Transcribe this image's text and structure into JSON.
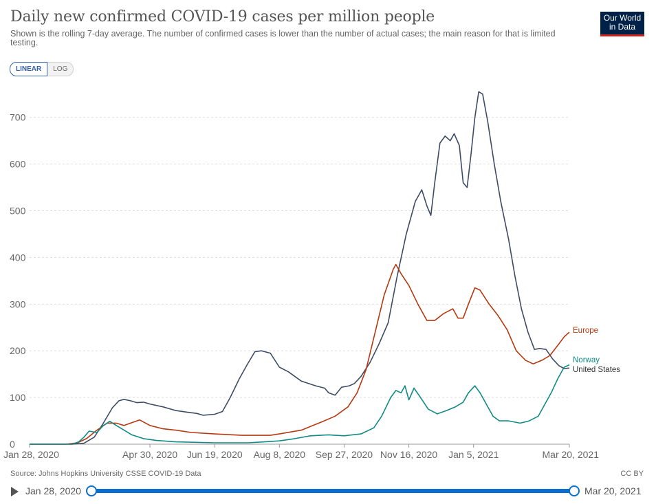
{
  "header": {
    "title": "Daily new confirmed COVID-19 cases per million people",
    "subtitle": "Shown is the rolling 7-day average. The number of confirmed cases is lower than the number of actual cases; the main reason for that is limited testing.",
    "logo_line1": "Our World",
    "logo_line2": "in Data"
  },
  "scale_toggle": {
    "linear": "LINEAR",
    "log": "LOG",
    "active": "LINEAR"
  },
  "footer": {
    "source": "Source: Johns Hopkins University CSSE COVID-19 Data",
    "license": "CC BY"
  },
  "timeline": {
    "start": "Jan 28, 2020",
    "end": "Mar 20, 2021"
  },
  "colors": {
    "united_states": "#3d4b66",
    "europe": "#b5380f",
    "norway": "#0f8a84",
    "grid": "#dddddd",
    "axis": "#555555"
  },
  "chart_data": {
    "type": "line",
    "title": "Daily new confirmed COVID-19 cases per million people",
    "ylim": [
      0,
      760
    ],
    "yticks": [
      0,
      100,
      200,
      300,
      400,
      500,
      600,
      700
    ],
    "xlim": [
      "2020-01-28",
      "2021-03-20"
    ],
    "xticks": [
      {
        "date": "2020-01-28",
        "label": "Jan 28, 2020"
      },
      {
        "date": "2020-04-30",
        "label": "Apr 30, 2020"
      },
      {
        "date": "2020-06-19",
        "label": "Jun 19, 2020"
      },
      {
        "date": "2020-08-08",
        "label": "Aug 8, 2020"
      },
      {
        "date": "2020-09-27",
        "label": "Sep 27, 2020"
      },
      {
        "date": "2020-11-16",
        "label": "Nov 16, 2020"
      },
      {
        "date": "2021-01-05",
        "label": "Jan 5, 2021"
      },
      {
        "date": "2021-03-20",
        "label": "Mar 20, 2021"
      }
    ],
    "grid": true,
    "series": [
      {
        "name": "United States",
        "color": "#3d4b66",
        "points": [
          [
            "2020-01-28",
            0
          ],
          [
            "2020-03-01",
            0
          ],
          [
            "2020-03-10",
            2
          ],
          [
            "2020-03-18",
            15
          ],
          [
            "2020-03-25",
            45
          ],
          [
            "2020-04-01",
            78
          ],
          [
            "2020-04-06",
            93
          ],
          [
            "2020-04-10",
            96
          ],
          [
            "2020-04-15",
            93
          ],
          [
            "2020-04-20",
            89
          ],
          [
            "2020-04-25",
            90
          ],
          [
            "2020-04-30",
            86
          ],
          [
            "2020-05-10",
            80
          ],
          [
            "2020-05-20",
            72
          ],
          [
            "2020-05-30",
            68
          ],
          [
            "2020-06-05",
            66
          ],
          [
            "2020-06-10",
            62
          ],
          [
            "2020-06-19",
            64
          ],
          [
            "2020-06-25",
            70
          ],
          [
            "2020-07-01",
            100
          ],
          [
            "2020-07-08",
            140
          ],
          [
            "2020-07-14",
            170
          ],
          [
            "2020-07-20",
            198
          ],
          [
            "2020-07-25",
            200
          ],
          [
            "2020-08-01",
            195
          ],
          [
            "2020-08-08",
            165
          ],
          [
            "2020-08-15",
            155
          ],
          [
            "2020-08-25",
            135
          ],
          [
            "2020-09-05",
            125
          ],
          [
            "2020-09-12",
            120
          ],
          [
            "2020-09-15",
            110
          ],
          [
            "2020-09-20",
            105
          ],
          [
            "2020-09-25",
            122
          ],
          [
            "2020-10-01",
            125
          ],
          [
            "2020-10-05",
            130
          ],
          [
            "2020-10-10",
            145
          ],
          [
            "2020-10-17",
            175
          ],
          [
            "2020-10-24",
            215
          ],
          [
            "2020-10-31",
            260
          ],
          [
            "2020-11-07",
            360
          ],
          [
            "2020-11-14",
            450
          ],
          [
            "2020-11-21",
            520
          ],
          [
            "2020-11-26",
            545
          ],
          [
            "2020-11-30",
            510
          ],
          [
            "2020-12-03",
            490
          ],
          [
            "2020-12-06",
            560
          ],
          [
            "2020-12-10",
            645
          ],
          [
            "2020-12-14",
            660
          ],
          [
            "2020-12-18",
            650
          ],
          [
            "2020-12-21",
            665
          ],
          [
            "2020-12-25",
            640
          ],
          [
            "2020-12-28",
            560
          ],
          [
            "2020-12-31",
            550
          ],
          [
            "2021-01-03",
            620
          ],
          [
            "2021-01-06",
            700
          ],
          [
            "2021-01-09",
            755
          ],
          [
            "2021-01-12",
            750
          ],
          [
            "2021-01-16",
            690
          ],
          [
            "2021-01-21",
            600
          ],
          [
            "2021-01-26",
            520
          ],
          [
            "2021-02-01",
            440
          ],
          [
            "2021-02-06",
            360
          ],
          [
            "2021-02-11",
            290
          ],
          [
            "2021-02-16",
            240
          ],
          [
            "2021-02-21",
            203
          ],
          [
            "2021-02-25",
            205
          ],
          [
            "2021-03-02",
            203
          ],
          [
            "2021-03-07",
            183
          ],
          [
            "2021-03-12",
            168
          ],
          [
            "2021-03-16",
            162
          ],
          [
            "2021-03-20",
            163
          ]
        ]
      },
      {
        "name": "Europe",
        "color": "#b5380f",
        "points": [
          [
            "2020-01-28",
            0
          ],
          [
            "2020-02-25",
            0
          ],
          [
            "2020-03-05",
            3
          ],
          [
            "2020-03-12",
            12
          ],
          [
            "2020-03-20",
            30
          ],
          [
            "2020-03-28",
            45
          ],
          [
            "2020-04-04",
            45
          ],
          [
            "2020-04-10",
            40
          ],
          [
            "2020-04-15",
            45
          ],
          [
            "2020-04-22",
            52
          ],
          [
            "2020-04-30",
            40
          ],
          [
            "2020-05-10",
            33
          ],
          [
            "2020-05-20",
            30
          ],
          [
            "2020-06-01",
            25
          ],
          [
            "2020-06-19",
            22
          ],
          [
            "2020-07-10",
            19
          ],
          [
            "2020-08-01",
            19
          ],
          [
            "2020-08-08",
            22
          ],
          [
            "2020-08-25",
            30
          ],
          [
            "2020-09-10",
            48
          ],
          [
            "2020-09-20",
            60
          ],
          [
            "2020-09-30",
            80
          ],
          [
            "2020-10-07",
            110
          ],
          [
            "2020-10-14",
            160
          ],
          [
            "2020-10-21",
            240
          ],
          [
            "2020-10-28",
            320
          ],
          [
            "2020-11-04",
            375
          ],
          [
            "2020-11-06",
            385
          ],
          [
            "2020-11-10",
            365
          ],
          [
            "2020-11-16",
            340
          ],
          [
            "2020-11-23",
            300
          ],
          [
            "2020-11-30",
            265
          ],
          [
            "2020-12-06",
            265
          ],
          [
            "2020-12-13",
            280
          ],
          [
            "2020-12-20",
            290
          ],
          [
            "2020-12-24",
            270
          ],
          [
            "2020-12-28",
            270
          ],
          [
            "2021-01-01",
            300
          ],
          [
            "2021-01-06",
            335
          ],
          [
            "2021-01-10",
            330
          ],
          [
            "2021-01-17",
            300
          ],
          [
            "2021-01-24",
            275
          ],
          [
            "2021-01-31",
            245
          ],
          [
            "2021-02-07",
            200
          ],
          [
            "2021-02-14",
            180
          ],
          [
            "2021-02-20",
            172
          ],
          [
            "2021-02-27",
            180
          ],
          [
            "2021-03-05",
            190
          ],
          [
            "2021-03-12",
            215
          ],
          [
            "2021-03-16",
            230
          ],
          [
            "2021-03-20",
            240
          ]
        ]
      },
      {
        "name": "Norway",
        "color": "#0f8a84",
        "points": [
          [
            "2020-01-28",
            0
          ],
          [
            "2020-03-01",
            0
          ],
          [
            "2020-03-06",
            5
          ],
          [
            "2020-03-10",
            15
          ],
          [
            "2020-03-14",
            28
          ],
          [
            "2020-03-20",
            25
          ],
          [
            "2020-03-25",
            40
          ],
          [
            "2020-03-30",
            49
          ],
          [
            "2020-04-04",
            40
          ],
          [
            "2020-04-10",
            30
          ],
          [
            "2020-04-16",
            20
          ],
          [
            "2020-04-25",
            12
          ],
          [
            "2020-05-05",
            8
          ],
          [
            "2020-05-20",
            5
          ],
          [
            "2020-06-19",
            3
          ],
          [
            "2020-07-15",
            3
          ],
          [
            "2020-08-08",
            7
          ],
          [
            "2020-08-20",
            12
          ],
          [
            "2020-09-01",
            18
          ],
          [
            "2020-09-15",
            20
          ],
          [
            "2020-09-27",
            18
          ],
          [
            "2020-10-10",
            22
          ],
          [
            "2020-10-20",
            35
          ],
          [
            "2020-10-26",
            60
          ],
          [
            "2020-11-02",
            100
          ],
          [
            "2020-11-06",
            115
          ],
          [
            "2020-11-10",
            110
          ],
          [
            "2020-11-13",
            125
          ],
          [
            "2020-11-16",
            95
          ],
          [
            "2020-11-20",
            120
          ],
          [
            "2020-11-25",
            100
          ],
          [
            "2020-12-01",
            75
          ],
          [
            "2020-12-08",
            65
          ],
          [
            "2020-12-15",
            72
          ],
          [
            "2020-12-22",
            80
          ],
          [
            "2020-12-28",
            90
          ],
          [
            "2021-01-01",
            110
          ],
          [
            "2021-01-06",
            125
          ],
          [
            "2021-01-10",
            110
          ],
          [
            "2021-01-15",
            85
          ],
          [
            "2021-01-20",
            60
          ],
          [
            "2021-01-25",
            50
          ],
          [
            "2021-02-01",
            50
          ],
          [
            "2021-02-10",
            45
          ],
          [
            "2021-02-17",
            50
          ],
          [
            "2021-02-24",
            60
          ],
          [
            "2021-03-01",
            85
          ],
          [
            "2021-03-06",
            110
          ],
          [
            "2021-03-11",
            140
          ],
          [
            "2021-03-16",
            165
          ],
          [
            "2021-03-20",
            170
          ]
        ]
      }
    ]
  }
}
